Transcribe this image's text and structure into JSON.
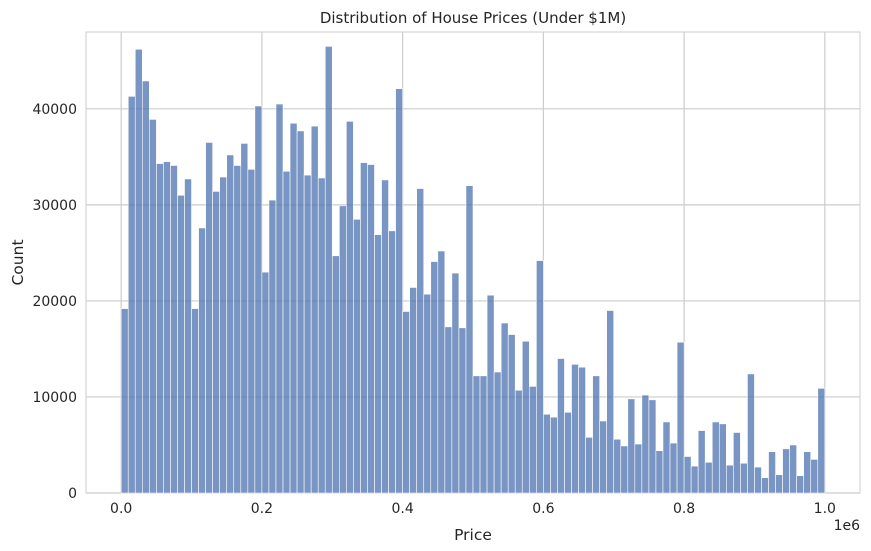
{
  "chart_data": {
    "type": "bar",
    "title": "Distribution of House Prices (Under $1M)",
    "xlabel": "Price",
    "ylabel": "Count",
    "x_offset_label": "1e6",
    "xlim": [
      -0.05,
      1.05
    ],
    "ylim": [
      0,
      48000
    ],
    "x_ticks": [
      0.0,
      0.2,
      0.4,
      0.6,
      0.8,
      1.0
    ],
    "x_tick_labels": [
      "0.0",
      "0.2",
      "0.4",
      "0.6",
      "0.8",
      "1.0"
    ],
    "y_ticks": [
      0,
      10000,
      20000,
      30000,
      40000
    ],
    "y_tick_labels": [
      "0",
      "10000",
      "20000",
      "30000",
      "40000"
    ],
    "grid": true,
    "bar_color": "#4c72b0",
    "bin_start": 0.0,
    "bin_width": 0.01,
    "values": [
      19200,
      41300,
      46200,
      42900,
      38900,
      34300,
      34500,
      34100,
      31000,
      32700,
      19200,
      27600,
      36500,
      31400,
      32900,
      35200,
      34100,
      36400,
      33700,
      40300,
      23000,
      30500,
      40500,
      33500,
      38500,
      37700,
      33100,
      38200,
      32800,
      46500,
      24700,
      29900,
      38700,
      28500,
      34400,
      34200,
      26900,
      32600,
      27300,
      42100,
      18900,
      21400,
      31700,
      20700,
      24100,
      25200,
      17300,
      22900,
      17200,
      32000,
      12200,
      12200,
      20600,
      12600,
      17700,
      16500,
      10700,
      15800,
      11100,
      24200,
      8200,
      7900,
      14000,
      8400,
      13400,
      13100,
      5800,
      12200,
      7500,
      19000,
      5600,
      4900,
      9800,
      5100,
      10200,
      9700,
      4400,
      7400,
      5200,
      15700,
      3800,
      2800,
      6500,
      3200,
      7400,
      7200,
      2900,
      6300,
      3100,
      12400,
      2700,
      1600,
      4300,
      1900,
      4600,
      5000,
      1800,
      4300,
      3500,
      10900
    ]
  }
}
